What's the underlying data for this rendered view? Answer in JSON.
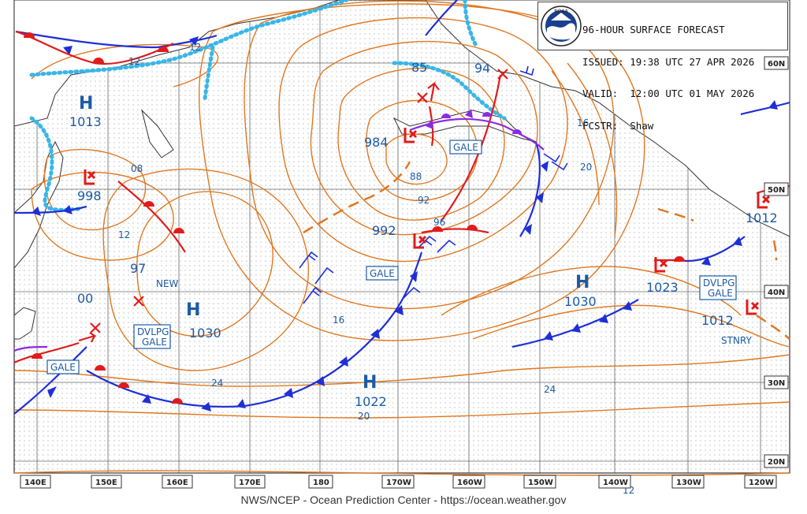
{
  "header": {
    "line1": "96-HOUR SURFACE FORECAST",
    "line2": "ISSUED: 19:38 UTC 27 APR 2026",
    "line3": "VALID:  12:00 UTC 01 MAY 2026",
    "line4": "FCSTR:  Shaw",
    "logo_text": "NOAA"
  },
  "footer": "NWS/NCEP - Ocean Prediction Center - https://ocean.weather.gov",
  "lon_labels": [
    "140E",
    "150E",
    "160E",
    "170E",
    "180",
    "170W",
    "160W",
    "150W",
    "140W",
    "130W",
    "120W"
  ],
  "lat_labels": [
    "60N",
    "50N",
    "40N",
    "30N",
    "20N"
  ],
  "highs": [
    {
      "letter": "H",
      "pressure": "1013"
    },
    {
      "letter": "H",
      "pressure": "1030"
    },
    {
      "letter": "H",
      "pressure": "1022"
    },
    {
      "letter": "H",
      "pressure": "1030"
    }
  ],
  "lows": [
    {
      "pressure": "998"
    },
    {
      "pressure": "984"
    },
    {
      "pressure": "992"
    },
    {
      "pressure": "1023"
    },
    {
      "pressure": "1012"
    },
    {
      "pressure": "1012"
    }
  ],
  "warnings": [
    "GALE",
    "GALE",
    "GALE",
    "DVLPG GALE",
    "DVLPG GALE"
  ],
  "dvlpg_line1": "DVLPG",
  "dvlpg_line2": "GALE",
  "annotations": {
    "new": "NEW",
    "stnry": "STNRY"
  },
  "isobar_labels": [
    "12",
    "12",
    "08",
    "12",
    "97",
    "00",
    "85",
    "94",
    "88",
    "92",
    "96",
    "16",
    "20",
    "16",
    "24",
    "24",
    "20",
    "12"
  ],
  "colors": {
    "isobar": "#e07820",
    "warm": "#e11b1b",
    "cold": "#1f2fd6",
    "occluded": "#8a2be2",
    "ice": "#38b6e8",
    "label": "#1c5aa6",
    "grid": "#555555",
    "coast": "#333333"
  }
}
